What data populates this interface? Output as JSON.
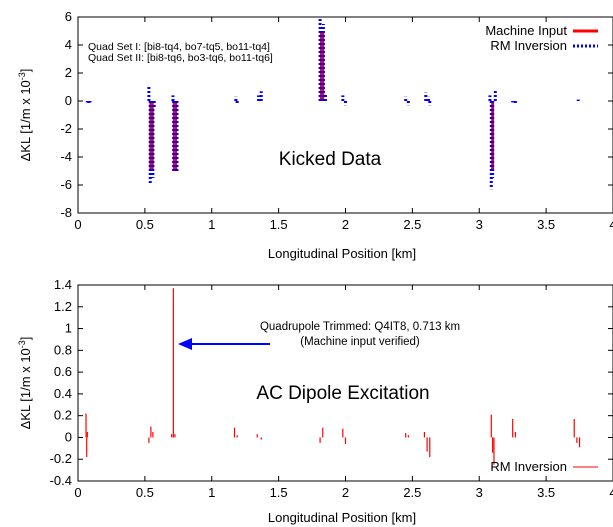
{
  "chart_data": [
    {
      "type": "bar",
      "xlabel": "Longitudinal Position [km]",
      "ylabel": "ΔKL [1/m x 10",
      "ylabel_exp": "-3",
      "ylabel_close": "]",
      "xlim": [
        0,
        4
      ],
      "ylim": [
        -8,
        6
      ],
      "xticks": [
        0,
        0.5,
        1,
        1.5,
        2,
        2.5,
        3,
        3.5,
        4
      ],
      "yticks": [
        -8,
        -6,
        -4,
        -2,
        0,
        2,
        4,
        6
      ],
      "xtick_labels": [
        "0",
        "0.5",
        "1",
        "1.5",
        "2",
        "2.5",
        "3",
        "3.5",
        "4"
      ],
      "ytick_labels": [
        "-8",
        "-6",
        "-4",
        "-2",
        "0",
        "2",
        "4",
        "6"
      ],
      "legend": [
        "Machine Input",
        "RM Inversion"
      ],
      "annotations": {
        "quad_set_1": "Quad Set I: [bi8-tq4, bo7-tq5, bo11-tq4]",
        "quad_set_2": "Quad Set II: [bi8-tq6, bo3-tq6, bo11-tq6]",
        "center_label": "Kicked Data"
      },
      "series": [
        {
          "name": "Machine Input",
          "color": "#ff0000",
          "style": "solid",
          "points": [
            [
              0.545,
              -5.0
            ],
            [
              0.555,
              -5.0
            ],
            [
              0.72,
              -5.0
            ],
            [
              0.73,
              -5.0
            ],
            [
              1.82,
              5.0
            ],
            [
              1.83,
              5.0
            ],
            [
              3.1,
              -5.0
            ]
          ]
        },
        {
          "name": "RM Inversion",
          "color": "#0000ff",
          "style": "dotted",
          "points": [
            [
              0.07,
              -0.1
            ],
            [
              0.08,
              -0.2
            ],
            [
              0.09,
              -0.1
            ],
            [
              0.53,
              1.0
            ],
            [
              0.54,
              -5.9
            ],
            [
              0.56,
              -5.5
            ],
            [
              0.57,
              -0.5
            ],
            [
              0.71,
              0.4
            ],
            [
              0.715,
              -5.0
            ],
            [
              0.725,
              -5.1
            ],
            [
              0.74,
              -5.0
            ],
            [
              1.18,
              0.3
            ],
            [
              1.19,
              -0.2
            ],
            [
              1.35,
              0.4
            ],
            [
              1.37,
              0.7
            ],
            [
              1.81,
              6.0
            ],
            [
              1.82,
              5.3
            ],
            [
              1.835,
              5.5
            ],
            [
              1.85,
              0.5
            ],
            [
              1.98,
              0.4
            ],
            [
              2.0,
              -0.3
            ],
            [
              2.45,
              0.3
            ],
            [
              2.47,
              -0.3
            ],
            [
              2.6,
              0.6
            ],
            [
              2.62,
              0.3
            ],
            [
              2.63,
              -0.3
            ],
            [
              3.08,
              0.4
            ],
            [
              3.09,
              -6.3
            ],
            [
              3.1,
              -5.5
            ],
            [
              3.12,
              0.8
            ],
            [
              3.25,
              -0.1
            ],
            [
              3.27,
              -0.2
            ],
            [
              3.74,
              0.1
            ]
          ]
        }
      ]
    },
    {
      "type": "bar",
      "xlabel": "Longitudinal Position [km]",
      "ylabel": "ΔKL [1/m x 10",
      "ylabel_exp": "-3",
      "ylabel_close": "]",
      "xlim": [
        0,
        4
      ],
      "ylim": [
        -0.4,
        1.4
      ],
      "xticks": [
        0,
        0.5,
        1,
        1.5,
        2,
        2.5,
        3,
        3.5,
        4
      ],
      "yticks": [
        -0.4,
        -0.2,
        0,
        0.2,
        0.4,
        0.6,
        0.8,
        1.0,
        1.2,
        1.4
      ],
      "xtick_labels": [
        "0",
        "0.5",
        "1",
        "1.5",
        "2",
        "2.5",
        "3",
        "3.5",
        "4"
      ],
      "ytick_labels": [
        "-0.4",
        "-0.2",
        "0",
        "0.2",
        "0.4",
        "0.6",
        "0.8",
        "1",
        "1.2",
        "1.4"
      ],
      "legend": [
        "RM Inversion"
      ],
      "annotations": {
        "arrow_label_line1": "Quadrupole Trimmed: Q4IT8, 0.713 km",
        "arrow_label_line2": "(Machine input verified)",
        "center_label": "AC Dipole Excitation"
      },
      "series": [
        {
          "name": "RM Inversion",
          "color": "#ff0000",
          "style": "solid",
          "points": [
            [
              0.06,
              0.22
            ],
            [
              0.065,
              -0.18
            ],
            [
              0.07,
              0.05
            ],
            [
              0.53,
              -0.05
            ],
            [
              0.545,
              0.1
            ],
            [
              0.56,
              0.05
            ],
            [
              0.7,
              0.03
            ],
            [
              0.713,
              1.37
            ],
            [
              0.725,
              0.03
            ],
            [
              1.17,
              0.09
            ],
            [
              1.19,
              0.02
            ],
            [
              1.34,
              0.03
            ],
            [
              1.37,
              -0.02
            ],
            [
              1.81,
              -0.05
            ],
            [
              1.83,
              0.09
            ],
            [
              1.98,
              0.08
            ],
            [
              2.0,
              -0.06
            ],
            [
              2.45,
              0.04
            ],
            [
              2.47,
              0.02
            ],
            [
              2.59,
              0.05
            ],
            [
              2.61,
              -0.13
            ],
            [
              2.63,
              -0.18
            ],
            [
              3.09,
              0.21
            ],
            [
              3.1,
              -0.14
            ],
            [
              3.11,
              -0.25
            ],
            [
              3.25,
              0.17
            ],
            [
              3.27,
              0.05
            ],
            [
              3.29,
              0.0
            ],
            [
              3.71,
              0.17
            ],
            [
              3.73,
              -0.05
            ],
            [
              3.75,
              -0.09
            ]
          ]
        }
      ]
    }
  ]
}
